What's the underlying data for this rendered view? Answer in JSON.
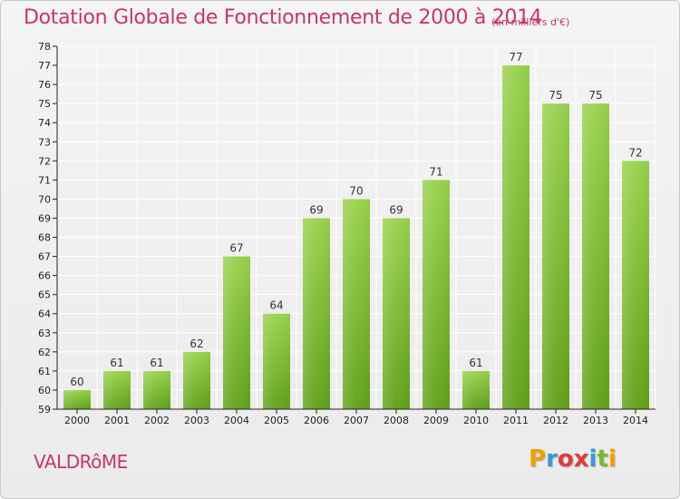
{
  "chart_data": {
    "type": "bar",
    "title": "Dotation Globale de Fonctionnement de 2000 à 2014",
    "subtitle": "(en milliers d'€)",
    "categories": [
      "2000",
      "2001",
      "2002",
      "2003",
      "2004",
      "2005",
      "2006",
      "2007",
      "2008",
      "2009",
      "2010",
      "2011",
      "2012",
      "2013",
      "2014"
    ],
    "values": [
      60,
      61,
      61,
      62,
      67,
      64,
      69,
      70,
      69,
      71,
      61,
      77,
      75,
      75,
      72
    ],
    "ylim": [
      59,
      78
    ],
    "yticks": [
      59,
      60,
      61,
      62,
      63,
      64,
      65,
      66,
      67,
      68,
      69,
      70,
      71,
      72,
      73,
      74,
      75,
      76,
      77,
      78
    ],
    "grid": true,
    "bar_color": "#7cc133",
    "xlabel": "",
    "ylabel": ""
  },
  "footer": {
    "commune": "VALDRôME",
    "logo_letters": [
      "P",
      "r",
      "o",
      "x",
      "i",
      "t",
      "i"
    ],
    "logo_colors": [
      "#f0a000",
      "#3a9ad9",
      "#e03a3a",
      "#e03a3a",
      "#3a9ad9",
      "#7cb82f",
      "#f0a000"
    ]
  },
  "colors": {
    "title": "#c8336f",
    "axis": "#222222",
    "grid": "#ffffff"
  }
}
